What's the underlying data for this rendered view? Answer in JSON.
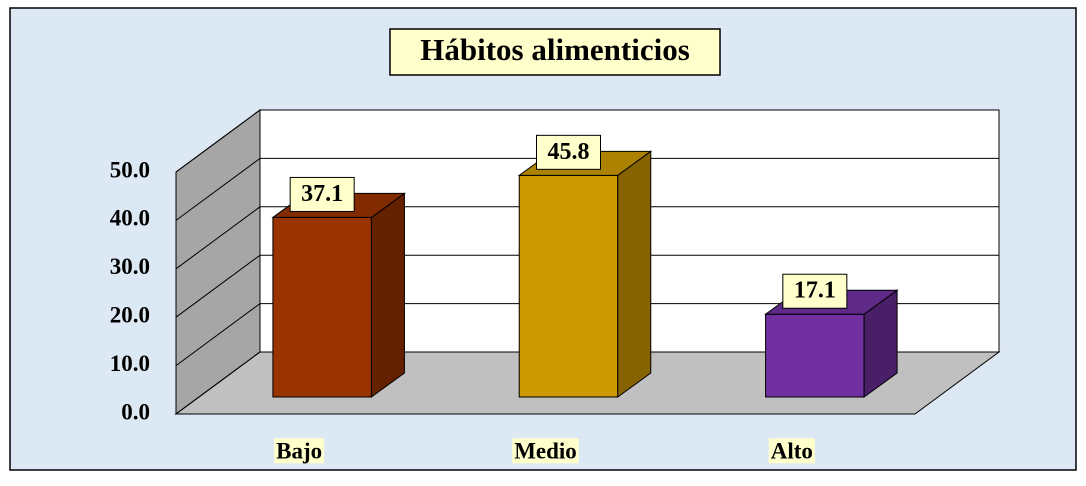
{
  "chart_data": {
    "type": "bar3d",
    "title": "Hábitos alimenticios",
    "categories": [
      "Bajo",
      "Medio",
      "Alto"
    ],
    "values": [
      37.1,
      45.8,
      17.1
    ],
    "colors": [
      "#993300",
      "#cc9900",
      "#7030a0"
    ],
    "ylim": [
      0,
      50
    ],
    "yticks": [
      {
        "value": 0,
        "label": "0.0"
      },
      {
        "value": 10,
        "label": "10.0"
      },
      {
        "value": 20,
        "label": "20.0"
      },
      {
        "value": 30,
        "label": "30.0"
      },
      {
        "value": 40,
        "label": "40.0"
      },
      {
        "value": 50,
        "label": "50.0"
      }
    ],
    "grid": true
  }
}
